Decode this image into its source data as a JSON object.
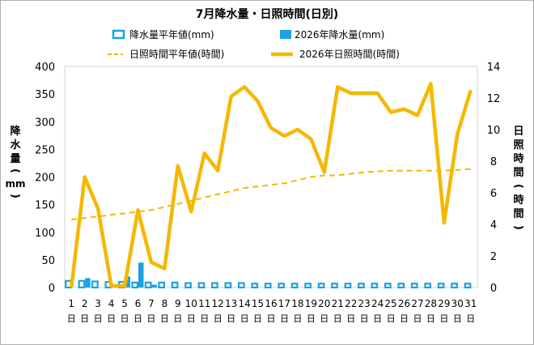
{
  "chart_data": {
    "type": "bar",
    "title": "7月降水量・日照時間(日別)",
    "ylabel_left": "降水量(mm)",
    "ylabel_right": "日照時間(時間)",
    "ylim_left": [
      0,
      400
    ],
    "yticks_left": [
      0,
      50,
      100,
      150,
      200,
      250,
      300,
      350,
      400
    ],
    "ylim_right": [
      0,
      14
    ],
    "yticks_right": [
      0,
      2,
      4,
      6,
      8,
      10,
      12,
      14
    ],
    "grid": false,
    "legend_position": "top",
    "day_suffix": "日",
    "categories": [
      "1",
      "2",
      "3",
      "4",
      "5",
      "6",
      "7",
      "8",
      "9",
      "10",
      "11",
      "12",
      "13",
      "14",
      "15",
      "16",
      "17",
      "18",
      "19",
      "20",
      "21",
      "22",
      "23",
      "24",
      "25",
      "26",
      "27",
      "28",
      "29",
      "30",
      "31"
    ],
    "series": [
      {
        "name": "降水量平年値(mm)",
        "kind": "bar-outline",
        "axis": "left",
        "color": "#1aa3e0",
        "values": [
          12,
          12,
          11,
          10,
          10,
          9,
          9,
          9,
          9,
          8,
          8,
          8,
          8,
          8,
          7,
          7,
          7,
          7,
          7,
          7,
          7,
          7,
          7,
          7,
          7,
          7,
          7,
          7,
          7,
          7,
          7
        ]
      },
      {
        "name": "2026年降水量(mm)",
        "kind": "bar",
        "axis": "left",
        "color": "#1aa3e0",
        "values": [
          0,
          17,
          0,
          0,
          20,
          45,
          5,
          0,
          0,
          0,
          0,
          0,
          0,
          0,
          0,
          0,
          0,
          0,
          0,
          0,
          0,
          0,
          0,
          0,
          0,
          0,
          0,
          0,
          0,
          0,
          0
        ]
      },
      {
        "name": "日照時間平年値(時間)",
        "kind": "line-dashed",
        "axis": "right",
        "color": "#f5b800",
        "values": [
          4.3,
          4.4,
          4.5,
          4.6,
          4.7,
          4.8,
          4.9,
          5.1,
          5.3,
          5.5,
          5.7,
          5.9,
          6.1,
          6.3,
          6.4,
          6.5,
          6.6,
          6.8,
          7.0,
          7.1,
          7.1,
          7.2,
          7.3,
          7.35,
          7.4,
          7.4,
          7.4,
          7.4,
          7.4,
          7.45,
          7.5
        ]
      },
      {
        "name": "2026年日照時間(時間)",
        "kind": "line",
        "axis": "right",
        "color": "#f5b800",
        "values": [
          0,
          7.0,
          5.0,
          0.1,
          0.1,
          4.9,
          1.6,
          1.2,
          7.7,
          4.8,
          8.5,
          7.4,
          12.1,
          12.7,
          11.8,
          10.1,
          9.6,
          10.0,
          9.4,
          7.3,
          12.7,
          12.3,
          12.3,
          12.3,
          11.1,
          11.3,
          10.9,
          12.9,
          4.1,
          9.7,
          12.5
        ]
      }
    ]
  }
}
